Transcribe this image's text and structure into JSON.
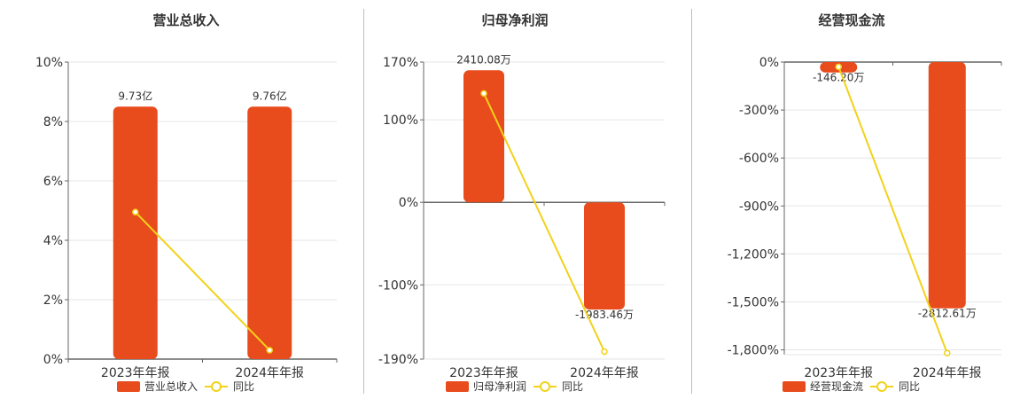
{
  "colors": {
    "bar": "#e84b1c",
    "line": "#f2d21a",
    "grid": "#e6e6e6",
    "axis": "#666666"
  },
  "charts": [
    {
      "title": "营业总收入",
      "legend": {
        "bar": "营业总收入",
        "line": "同比"
      },
      "chart_data": {
        "type": "bar",
        "title": "营业总收入",
        "categories": [
          "2023年年报",
          "2024年年报"
        ],
        "series": [
          {
            "name": "营业总收入",
            "type": "bar",
            "values": [
              8.5,
              8.5
            ],
            "labels": [
              "9.73亿",
              "9.76亿"
            ]
          },
          {
            "name": "同比",
            "type": "line",
            "values": [
              4.95,
              0.3
            ]
          }
        ],
        "y_ticks": [
          "0%",
          "2%",
          "4%",
          "6%",
          "8%",
          "10%"
        ],
        "ylim": [
          0,
          10
        ],
        "grid": true,
        "legend_position": "bottom"
      }
    },
    {
      "title": "归母净利润",
      "legend": {
        "bar": "归母净利润",
        "line": "同比"
      },
      "chart_data": {
        "type": "bar",
        "title": "归母净利润",
        "categories": [
          "2023年年报",
          "2024年年报"
        ],
        "series": [
          {
            "name": "归母净利润",
            "type": "bar",
            "values": [
              160,
              -130
            ],
            "labels": [
              "2410.08万",
              "-1983.46万"
            ]
          },
          {
            "name": "同比",
            "type": "line",
            "values": [
              132,
              -181
            ]
          }
        ],
        "y_ticks": [
          "-190%",
          "-100%",
          "0%",
          "100%",
          "170%"
        ],
        "y_tick_values": [
          -190,
          -100,
          0,
          100,
          170
        ],
        "ylim": [
          -190,
          170
        ],
        "grid": true,
        "legend_position": "bottom"
      }
    },
    {
      "title": "经营现金流",
      "legend": {
        "bar": "经营现金流",
        "line": "同比"
      },
      "chart_data": {
        "type": "bar",
        "title": "经营现金流",
        "categories": [
          "2023年年报",
          "2024年年报"
        ],
        "series": [
          {
            "name": "经营现金流",
            "type": "bar",
            "values": [
              -65,
              -1540
            ],
            "labels": [
              "-146.20万",
              "-2812.61万"
            ]
          },
          {
            "name": "同比",
            "type": "line",
            "values": [
              -30,
              -1820
            ]
          }
        ],
        "y_ticks": [
          "-1,800%",
          "-1,500%",
          "-1,200%",
          "-900%",
          "-600%",
          "-300%",
          "0%"
        ],
        "y_tick_values": [
          -1800,
          -1500,
          -1200,
          -900,
          -600,
          -300,
          0
        ],
        "ylim": [
          -1830,
          0
        ],
        "grid": true,
        "legend_position": "bottom"
      }
    }
  ]
}
